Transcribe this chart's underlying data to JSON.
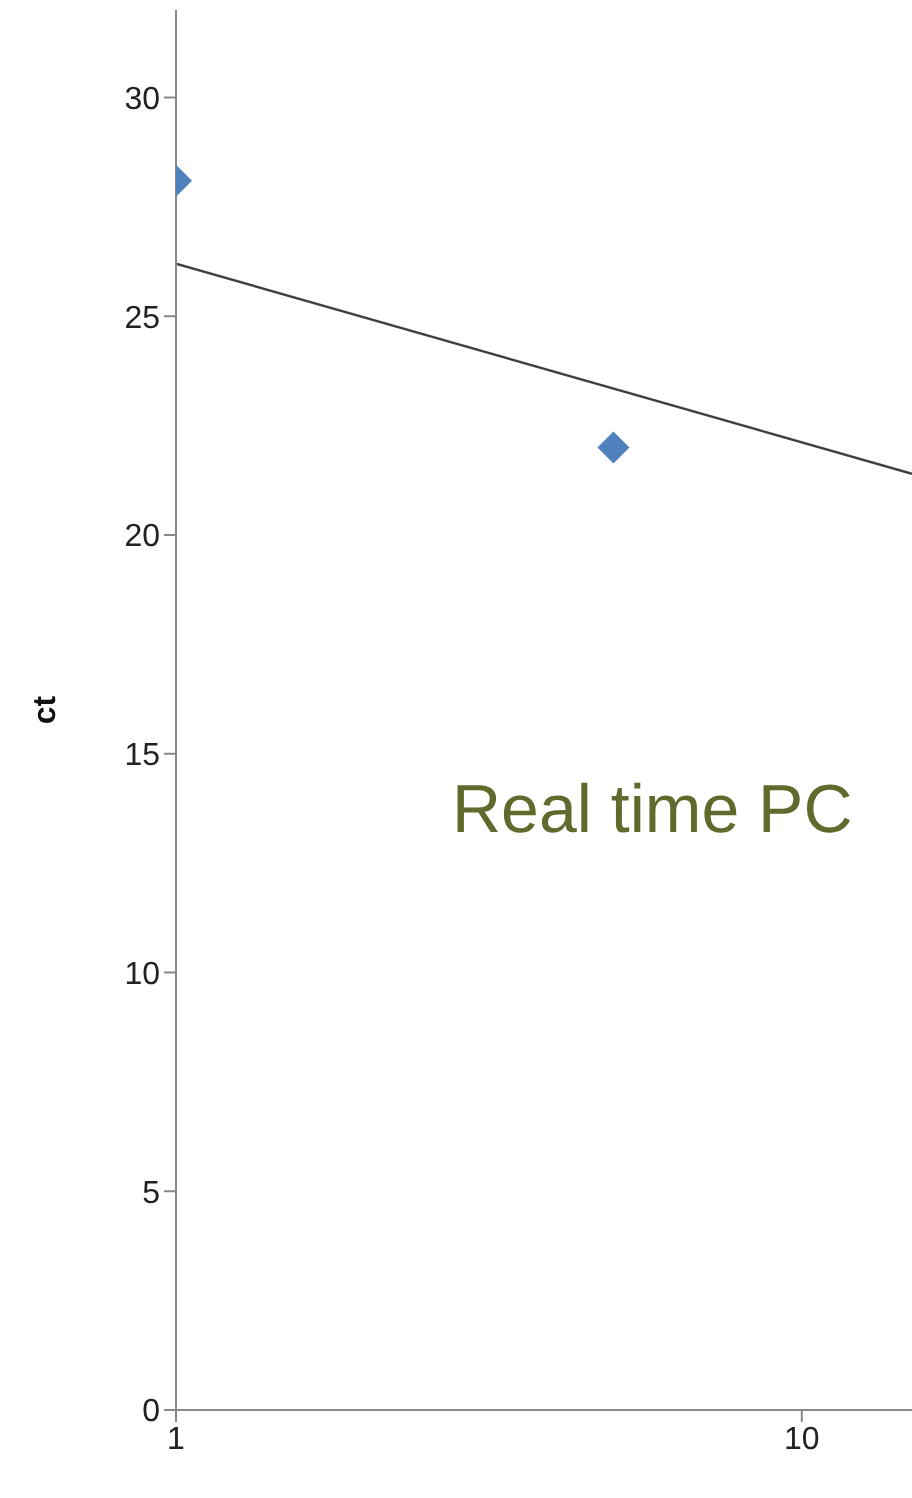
{
  "chart_data": {
    "type": "scatter",
    "ylabel": "ct",
    "annotations": [
      "Real time PC"
    ],
    "log": "x",
    "marker": "diamond",
    "xlim": [
      1,
      15
    ],
    "xticks": [
      1,
      10
    ],
    "ylim": [
      0,
      32
    ],
    "yticks": [
      0,
      5,
      10,
      15,
      20,
      25,
      30
    ],
    "series": [
      {
        "color": "#4f81bd",
        "x": [
          1,
          5
        ],
        "values": [
          28.1,
          22.0
        ]
      },
      {
        "type": "line",
        "marker": "none",
        "color": "#404040",
        "x": [
          1,
          15
        ],
        "values": [
          26.2,
          21.4
        ]
      }
    ]
  }
}
